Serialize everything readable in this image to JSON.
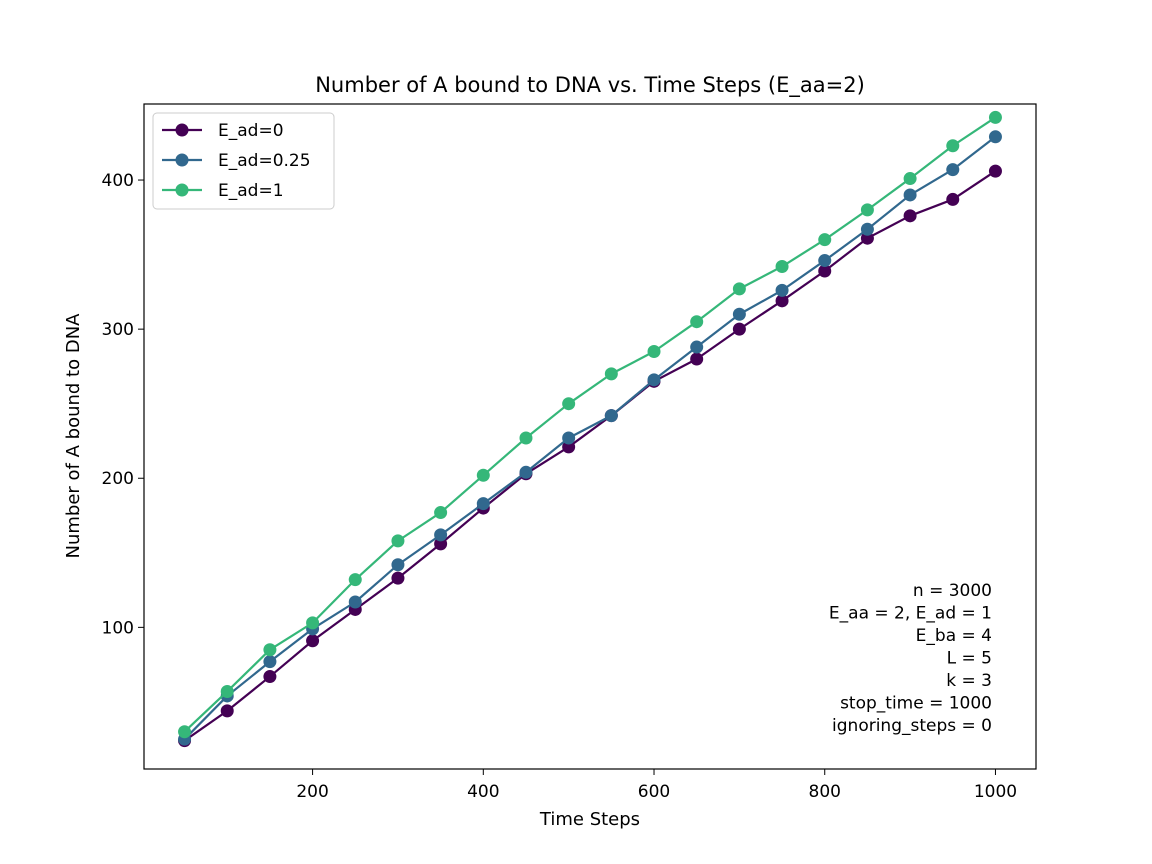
{
  "chart_data": {
    "type": "line",
    "title": "Number of A bound to DNA vs. Time Steps (E_aa=2)",
    "xlabel": "Time Steps",
    "ylabel": "Number of A bound to DNA",
    "xlim": [
      2.5,
      1047.5
    ],
    "ylim": [
      5,
      451
    ],
    "xticks": [
      200,
      400,
      600,
      800,
      1000
    ],
    "yticks": [
      100,
      200,
      300,
      400
    ],
    "grid": false,
    "legend_position": "upper-left",
    "x": [
      50,
      100,
      150,
      200,
      250,
      300,
      350,
      400,
      450,
      500,
      550,
      600,
      650,
      700,
      750,
      800,
      850,
      900,
      950,
      1000
    ],
    "series": [
      {
        "name": "E_ad=0",
        "color": "#440154",
        "values": [
          24,
          44,
          67,
          91,
          112,
          133,
          156,
          180,
          203,
          221,
          242,
          265,
          280,
          300,
          319,
          339,
          361,
          376,
          387,
          406
        ]
      },
      {
        "name": "E_ad=0.25",
        "color": "#31688e",
        "values": [
          25,
          54,
          77,
          99,
          117,
          142,
          162,
          183,
          204,
          227,
          242,
          266,
          288,
          310,
          326,
          346,
          367,
          390,
          407,
          429
        ]
      },
      {
        "name": "E_ad=1",
        "color": "#35b779",
        "values": [
          30,
          57,
          85,
          103,
          132,
          158,
          177,
          202,
          227,
          250,
          270,
          285,
          305,
          327,
          342,
          360,
          380,
          401,
          423,
          442
        ]
      }
    ],
    "annotation_lines": [
      "n = 3000",
      "E_aa = 2, E_ad = 1",
      "E_ba = 4",
      "L = 5",
      "k = 3",
      "stop_time = 1000",
      "ignoring_steps = 0"
    ]
  }
}
